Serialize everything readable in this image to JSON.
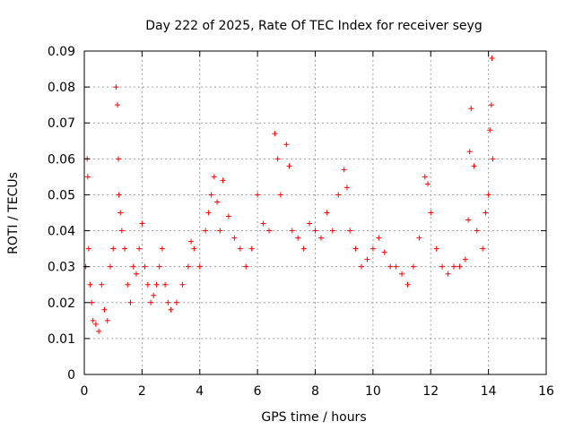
{
  "chart_data": {
    "type": "scatter",
    "title": "Day 222 of 2025, Rate Of TEC Index for receiver seyg",
    "xlabel": "GPS time / hours",
    "ylabel": "ROTI / TECUs",
    "xlim": [
      0,
      16
    ],
    "ylim": [
      0,
      0.09
    ],
    "x_ticks": [
      0,
      2,
      4,
      6,
      8,
      10,
      12,
      14,
      16
    ],
    "x_tick_labels": [
      "0",
      "2",
      "4",
      "6",
      "8",
      "10",
      "12",
      "14",
      "16"
    ],
    "y_ticks": [
      0,
      0.01,
      0.02,
      0.03,
      0.04,
      0.05,
      0.06,
      0.07,
      0.08,
      0.09
    ],
    "y_tick_labels": [
      "0",
      "0.01",
      "0.02",
      "0.03",
      "0.04",
      "0.05",
      "0.06",
      "0.07",
      "0.08",
      "0.09"
    ],
    "grid": true,
    "marker": "+",
    "series": [
      {
        "name": "ROTI",
        "color": "#ff0000",
        "x": [
          0.05,
          0.1,
          0.12,
          0.15,
          0.2,
          0.25,
          0.3,
          0.4,
          0.5,
          0.6,
          0.7,
          0.8,
          0.9,
          1.0,
          1.1,
          1.15,
          1.18,
          1.2,
          1.25,
          1.3,
          1.4,
          1.5,
          1.6,
          1.7,
          1.8,
          1.9,
          2.0,
          2.1,
          2.2,
          2.3,
          2.4,
          2.5,
          2.6,
          2.7,
          2.8,
          2.9,
          3.0,
          3.2,
          3.4,
          3.6,
          3.7,
          3.8,
          4.0,
          4.2,
          4.3,
          4.4,
          4.5,
          4.6,
          4.7,
          4.8,
          5.0,
          5.2,
          5.4,
          5.6,
          5.8,
          6.0,
          6.2,
          6.4,
          6.6,
          6.7,
          6.8,
          7.0,
          7.1,
          7.2,
          7.4,
          7.6,
          7.8,
          8.0,
          8.2,
          8.4,
          8.6,
          8.8,
          9.0,
          9.1,
          9.2,
          9.4,
          9.6,
          9.8,
          10.0,
          10.2,
          10.4,
          10.6,
          10.8,
          11.0,
          11.2,
          11.4,
          11.6,
          11.8,
          11.9,
          12.0,
          12.2,
          12.4,
          12.6,
          12.8,
          13.0,
          13.2,
          13.3,
          13.35,
          13.4,
          13.5,
          13.6,
          13.8,
          13.9,
          14.0,
          14.05,
          14.1,
          14.12,
          14.15
        ],
        "values": [
          0.03,
          0.06,
          0.055,
          0.035,
          0.025,
          0.02,
          0.015,
          0.014,
          0.012,
          0.025,
          0.018,
          0.015,
          0.03,
          0.035,
          0.08,
          0.075,
          0.06,
          0.05,
          0.045,
          0.04,
          0.035,
          0.025,
          0.02,
          0.03,
          0.028,
          0.035,
          0.042,
          0.03,
          0.025,
          0.02,
          0.022,
          0.025,
          0.03,
          0.035,
          0.025,
          0.02,
          0.018,
          0.02,
          0.025,
          0.03,
          0.037,
          0.035,
          0.03,
          0.04,
          0.045,
          0.05,
          0.055,
          0.048,
          0.04,
          0.054,
          0.044,
          0.038,
          0.035,
          0.03,
          0.035,
          0.05,
          0.042,
          0.04,
          0.067,
          0.06,
          0.05,
          0.064,
          0.058,
          0.04,
          0.038,
          0.035,
          0.042,
          0.04,
          0.038,
          0.045,
          0.04,
          0.05,
          0.057,
          0.052,
          0.04,
          0.035,
          0.03,
          0.032,
          0.035,
          0.038,
          0.034,
          0.03,
          0.03,
          0.028,
          0.025,
          0.03,
          0.038,
          0.055,
          0.053,
          0.045,
          0.035,
          0.03,
          0.028,
          0.03,
          0.03,
          0.032,
          0.043,
          0.062,
          0.074,
          0.058,
          0.04,
          0.035,
          0.045,
          0.05,
          0.068,
          0.075,
          0.088,
          0.06
        ]
      }
    ]
  }
}
